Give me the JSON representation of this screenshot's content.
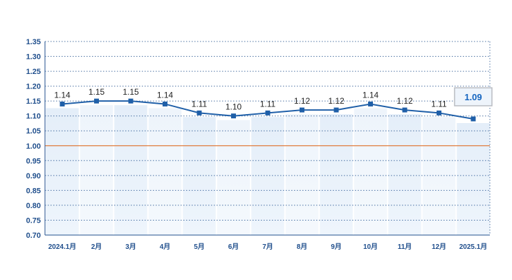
{
  "chart_data": {
    "type": "line",
    "categories": [
      "2024.1月",
      "2月",
      "3月",
      "4月",
      "5月",
      "6月",
      "7月",
      "8月",
      "9月",
      "10月",
      "11月",
      "12月",
      "2025.1月"
    ],
    "values": [
      1.14,
      1.15,
      1.15,
      1.14,
      1.11,
      1.1,
      1.11,
      1.12,
      1.12,
      1.14,
      1.12,
      1.11,
      1.09
    ],
    "value_labels": [
      "1.14",
      "1.15",
      "1.15",
      "1.14",
      "1.11",
      "1.10",
      "1.11",
      "1.12",
      "1.12",
      "1.14",
      "1.12",
      "1.11",
      "1.09"
    ],
    "ylim": [
      0.7,
      1.35
    ],
    "yticks": [
      "0.70",
      "0.75",
      "0.80",
      "0.85",
      "0.90",
      "0.95",
      "1.00",
      "1.05",
      "1.10",
      "1.15",
      "1.20",
      "1.25",
      "1.30",
      "1.35"
    ],
    "reference_line": 1.0,
    "grid": "horizontal-dotted",
    "line_color": "#1f5fa8",
    "reference_color": "#e07a3a",
    "axis_text_color": "#1f4e8c",
    "highlight_last": true
  }
}
